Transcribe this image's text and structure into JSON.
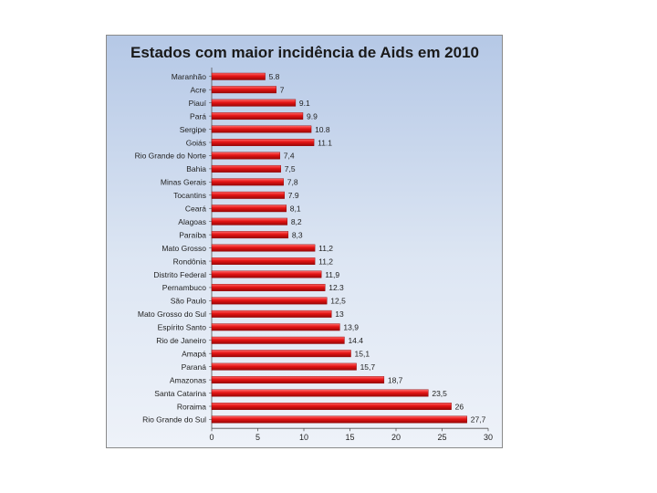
{
  "chart_data": {
    "type": "bar",
    "orientation": "horizontal",
    "title": "Estados com maior incidência de Aids em 2010",
    "xlabel": "",
    "ylabel": "",
    "xlim": [
      0,
      30
    ],
    "xticks": [
      "0",
      "5",
      "10",
      "15",
      "20",
      "25",
      "30"
    ],
    "grid": false,
    "legend": "none",
    "bar_color": "#e01010",
    "categories": [
      "Maranhão",
      "Acre",
      "Piauí",
      "Pará",
      "Sergipe",
      "Goiás",
      "Rio Grande do Norte",
      "Bahia",
      "Minas Gerais",
      "Tocantins",
      "Ceará",
      "Alagoas",
      "Paraíba",
      "Mato Grosso",
      "Rondônia",
      "Distrito Federal",
      "Pernambuco",
      "São Paulo",
      "Mato Grosso do Sul",
      "Espírito Santo",
      "Rio de Janeiro",
      "Amapá",
      "Paraná",
      "Amazonas",
      "Santa Catarina",
      "Roraima",
      "Rio Grande do Sul"
    ],
    "values": [
      5.8,
      7,
      9.1,
      9.9,
      10.8,
      11.1,
      7.4,
      7.5,
      7.8,
      7.9,
      8.1,
      8.2,
      8.3,
      11.2,
      11.2,
      11.9,
      12.3,
      12.5,
      13,
      13.9,
      14.4,
      15.1,
      15.7,
      18.7,
      23.5,
      26,
      27.7
    ],
    "value_labels": [
      "5.8",
      "7",
      "9.1",
      "9.9",
      "10.8",
      "11.1",
      "7,4",
      "7,5",
      "7,8",
      "7.9",
      "8,1",
      "8,2",
      "8,3",
      "11,2",
      "11,2",
      "11,9",
      "12.3",
      "12,5",
      "13",
      "13,9",
      "14.4",
      "15,1",
      "15,7",
      "18,7",
      "23,5",
      "26",
      "27,7"
    ]
  }
}
